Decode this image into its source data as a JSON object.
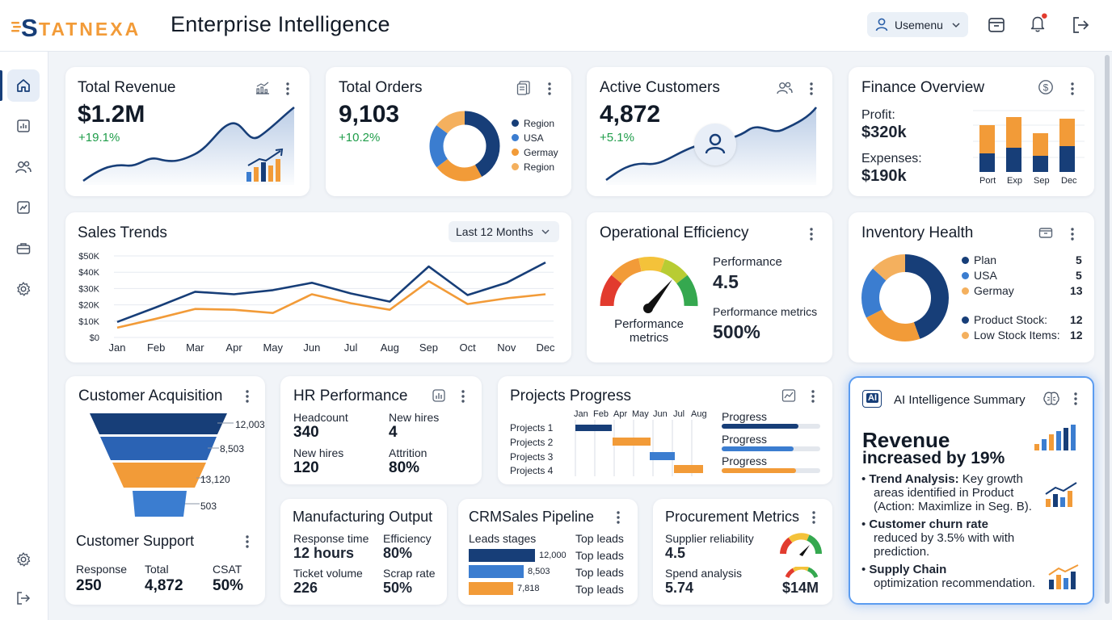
{
  "brand": {
    "logo_text": "STATNEXA",
    "app_title": "Enterprise Intelligence",
    "user_menu_label": "Usemenu"
  },
  "colors": {
    "navy": "#173e78",
    "blue": "#3b7dd0",
    "orange": "#f29b38",
    "green": "#1f9d4a",
    "ai_border": "#5b9cf0"
  },
  "sidebar": {
    "items": [
      "home-icon",
      "bar-chart-icon",
      "users-icon",
      "trend-icon",
      "briefcase-icon",
      "settings-icon"
    ],
    "bottom": [
      "settings-icon",
      "logout-icon"
    ]
  },
  "total_revenue": {
    "title": "Total Revenue",
    "value": "$1.2M",
    "change": "+19.1%"
  },
  "total_orders": {
    "title": "Total Orders",
    "value": "9,103",
    "change": "+10.2%",
    "legend": [
      "Region",
      "USA",
      "Germay",
      "Region"
    ]
  },
  "active_customers": {
    "title": "Active Customers",
    "value": "4,872",
    "change": "+5.1%"
  },
  "finance": {
    "title": "Finance Overview",
    "profit_label": "Profit:",
    "profit_value": "$320k",
    "expenses_label": "Expenses:",
    "expenses_value": "$190k",
    "bar_labels": [
      "Port",
      "Exp",
      "Sep",
      "Dec"
    ]
  },
  "sales_trends": {
    "title": "Sales Trends",
    "range_select": "Last 12 Months",
    "y_ticks": [
      "$50K",
      "$40K",
      "$30K",
      "$20K",
      "$10K",
      "$0"
    ],
    "months": [
      "Jan",
      "Feb",
      "Mar",
      "Apr",
      "May",
      "Jun",
      "Jul",
      "Aug",
      "Sep",
      "Oct",
      "Nov",
      "Dec"
    ]
  },
  "chart_data": {
    "type": "line",
    "title": "Sales Trends",
    "x": [
      "Jan",
      "Feb",
      "Mar",
      "Apr",
      "May",
      "Jun",
      "Jul",
      "Aug",
      "Sep",
      "Oct",
      "Nov",
      "Dec"
    ],
    "ylim": [
      0,
      50000
    ],
    "grid": true,
    "series": [
      {
        "color": "#173e78",
        "values": [
          9500,
          18500,
          28000,
          26500,
          29000,
          33500,
          27000,
          22000,
          43500,
          26000,
          33500,
          46000
        ]
      },
      {
        "color": "#f29b38",
        "values": [
          6000,
          11500,
          17500,
          17000,
          15000,
          26500,
          21000,
          17000,
          34500,
          20500,
          24000,
          26500
        ]
      }
    ]
  },
  "operational": {
    "title": "Operational Efficiency",
    "gauge_label": "Performance metrics",
    "perf_label": "Performance",
    "perf_value": "4.5",
    "metrics_label": "Performance metrics",
    "metrics_value": "500%"
  },
  "inventory": {
    "title": "Inventory Health",
    "legend": [
      {
        "label": "Plan",
        "value": "5"
      },
      {
        "label": "USA",
        "value": "5"
      },
      {
        "label": "Germay",
        "value": "13"
      }
    ],
    "stock": [
      {
        "label": "Product Stock:",
        "value": "12"
      },
      {
        "label": "Low Stock Items:",
        "value": "12"
      }
    ]
  },
  "customer_acquisition": {
    "title": "Customer Acquisition",
    "funnel": [
      "12,003",
      "8,503",
      "13,120",
      "503"
    ]
  },
  "customer_support": {
    "title": "Customer Support",
    "stats": [
      {
        "label": "Response",
        "value": "250"
      },
      {
        "label": "Total",
        "value": "4,872"
      },
      {
        "label": "CSAT",
        "value": "50%"
      }
    ]
  },
  "hr": {
    "title": "HR Performance",
    "stats": [
      {
        "label": "Headcount",
        "value": "340"
      },
      {
        "label": "New hires",
        "value": "4"
      },
      {
        "label": "New hires",
        "value": "120"
      },
      {
        "label": "Attrition",
        "value": "80%"
      }
    ]
  },
  "projects": {
    "title": "Projects Progress",
    "months": [
      "Jan",
      "Feb",
      "Apr",
      "May",
      "Jun",
      "Jul",
      "Aug"
    ],
    "rows": [
      "Projects 1",
      "Projects 2",
      "Projects 3",
      "Projects 4"
    ],
    "progress": [
      {
        "label": "Progress",
        "fraction": 0.78,
        "color": "#173e78"
      },
      {
        "label": "Progress",
        "fraction": 0.73,
        "color": "#3b7dd0"
      },
      {
        "label": "Progress",
        "fraction": 0.75,
        "color": "#f29b38"
      }
    ]
  },
  "manufacturing": {
    "title": "Manufacturing Output",
    "stats": [
      {
        "label": "Response time",
        "value": "12 hours"
      },
      {
        "label": "Efficiency",
        "value": "80%"
      },
      {
        "label": "Ticket volume",
        "value": "226"
      },
      {
        "label": "Scrap rate",
        "value": "50%"
      }
    ]
  },
  "crm": {
    "title": "CRMSales Pipeline",
    "leads_label": "Leads stages",
    "bars": [
      {
        "value": "12,000",
        "color": "#173e78",
        "fraction": 1.0
      },
      {
        "value": "8,503",
        "color": "#3b7dd0",
        "fraction": 0.83
      },
      {
        "value": "7,818",
        "color": "#f29b38",
        "fraction": 0.67
      }
    ],
    "right_labels": [
      "Top leads",
      "Top leads",
      "Top leads",
      "Top leads"
    ]
  },
  "procurement": {
    "title": "Procurement Metrics",
    "stats": [
      {
        "label": "Supplier reliability",
        "value": "4.5"
      },
      {
        "label": "Spend analysis",
        "value": "5.74"
      }
    ],
    "gauge_value": "$14M"
  },
  "ai_summary": {
    "badge": "AI",
    "title": "AI Intelligence Summary",
    "headline_1": "Revenue",
    "headline_2": "increased by 19%",
    "bullets": [
      {
        "bold": "Trend Analysis:",
        "text_1": " Key growth",
        "text_2": "areas identified in Product",
        "text_3": "(Action: Maximlize in Seg. B)."
      },
      {
        "bold": "Customer churn rate",
        "text_1": "",
        "text_2": "reduced by 3.5% with with",
        "text_3": "prediction."
      },
      {
        "bold": "Supply Chain",
        "text_1": "",
        "text_2": "optimization recommendation.",
        "text_3": ""
      }
    ]
  }
}
